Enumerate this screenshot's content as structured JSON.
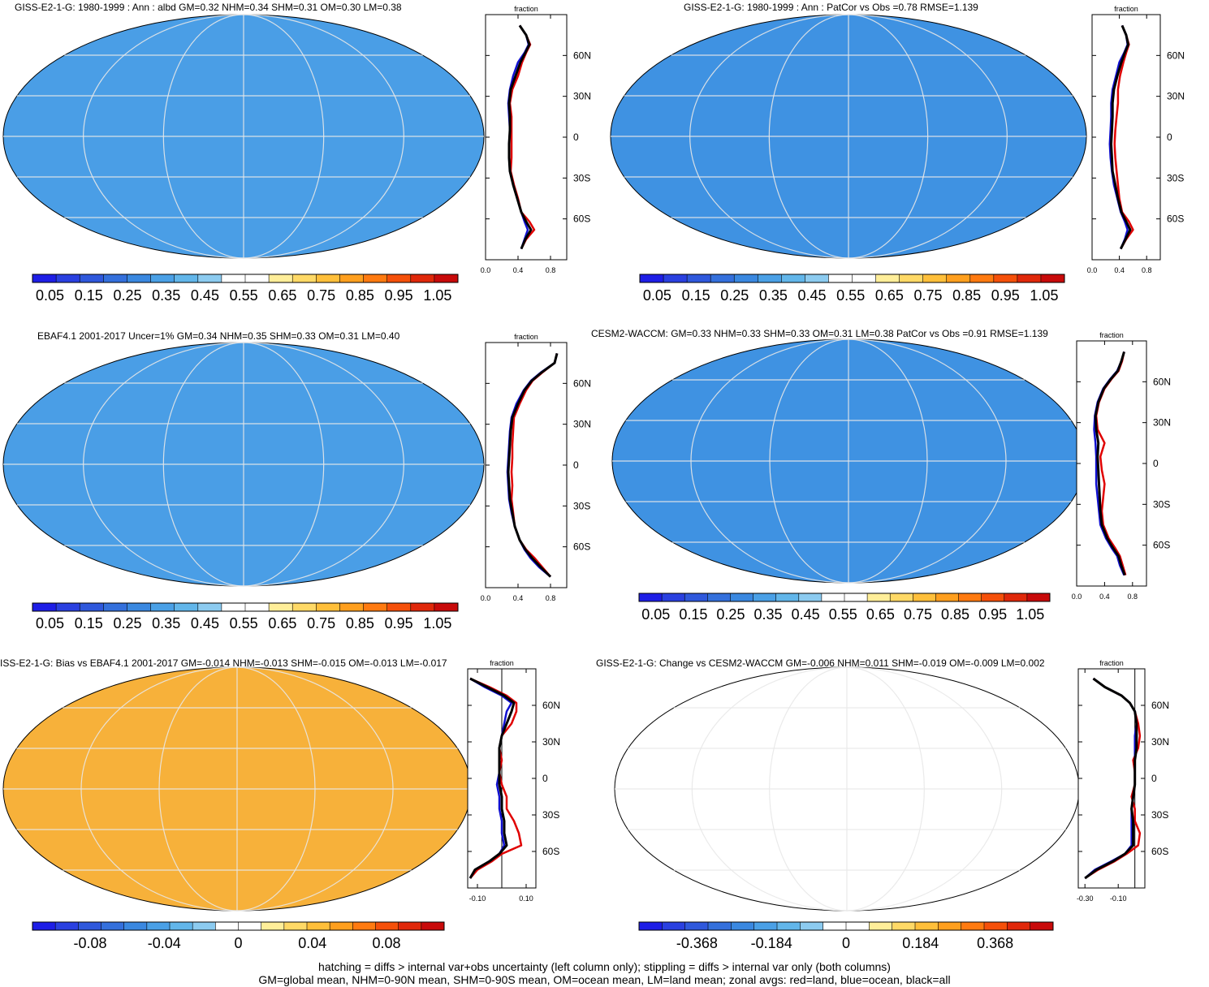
{
  "colors": {
    "scale_abs": [
      "#1e1ee6",
      "#2a40e0",
      "#2f58dc",
      "#3470dc",
      "#3a88e0",
      "#4aa0e6",
      "#62b6ea",
      "#8ccbf0",
      "#ffffff",
      "#ffffff",
      "#ffee99",
      "#ffd966",
      "#ffbf3a",
      "#ff9f1e",
      "#ff7a10",
      "#f5500a",
      "#e0280a",
      "#c80a0a"
    ],
    "scale_diff": [
      "#1e1ee6",
      "#2a40e0",
      "#2f58dc",
      "#3470dc",
      "#3a88e0",
      "#4aa0e6",
      "#62b6ea",
      "#8ccbf0",
      "#ffffff",
      "#ffffff",
      "#ffee99",
      "#ffd966",
      "#ffbf3a",
      "#ff9f1e",
      "#ff7a10",
      "#f5500a",
      "#e0280a",
      "#c80a0a"
    ],
    "land": "#e00000",
    "ocean": "#1010d0",
    "all": "#000000"
  },
  "footnote": {
    "line1": "hatching = diffs > internal var+obs uncertainty (left column only); stippling = diffs > internal var only (both columns)",
    "line2": "GM=global mean, NHM=0-90N mean, SHM=0-90S mean, OM=ocean mean, LM=land mean; zonal avgs: red=land, blue=ocean, black=all"
  },
  "panels": [
    {
      "title": "GISS-E2-1-G: 1980-1999 : Ann : albd GM=0.32 NHM=0.34 SHM=0.31 OM=0.30 LM=0.38",
      "colorbar_labels": [
        "0.05",
        "0.15",
        "0.25",
        "0.35",
        "0.45",
        "0.55",
        "0.65",
        "0.75",
        "0.85",
        "0.95",
        "1.05"
      ],
      "zonal_axis_title": "fraction",
      "lat_labels": [
        "60N",
        "30N",
        "0",
        "30S",
        "60S"
      ],
      "x_tick_labels": [
        "0.0",
        "0.4",
        "0.8"
      ]
    },
    {
      "title": "GISS-E2-1-G: 1980-1999 : Ann : PatCor vs Obs =0.78 RMSE=1.139",
      "colorbar_labels": [
        "0.05",
        "0.15",
        "0.25",
        "0.35",
        "0.45",
        "0.55",
        "0.65",
        "0.75",
        "0.85",
        "0.95",
        "1.05"
      ],
      "zonal_axis_title": "fraction",
      "lat_labels": [
        "60N",
        "30N",
        "0",
        "30S",
        "60S"
      ],
      "x_tick_labels": [
        "0.0",
        "0.4",
        "0.8"
      ]
    },
    {
      "title": "EBAF4.1 2001-2017 Uncer=1% GM=0.34 NHM=0.35 SHM=0.33 OM=0.31 LM=0.40",
      "colorbar_labels": [
        "0.05",
        "0.15",
        "0.25",
        "0.35",
        "0.45",
        "0.55",
        "0.65",
        "0.75",
        "0.85",
        "0.95",
        "1.05"
      ],
      "zonal_axis_title": "fraction",
      "lat_labels": [
        "60N",
        "30N",
        "0",
        "30S",
        "60S"
      ],
      "x_tick_labels": [
        "0.0",
        "0.4",
        "0.8"
      ]
    },
    {
      "title": "CESM2-WACCM: GM=0.33 NHM=0.33 SHM=0.33 OM=0.31 LM=0.38 PatCor vs Obs =0.91 RMSE=1.139",
      "colorbar_labels": [
        "0.05",
        "0.15",
        "0.25",
        "0.35",
        "0.45",
        "0.55",
        "0.65",
        "0.75",
        "0.85",
        "0.95",
        "1.05"
      ],
      "zonal_axis_title": "fraction",
      "lat_labels": [
        "60N",
        "30N",
        "0",
        "30S",
        "60S"
      ],
      "x_tick_labels": [
        "0.0",
        "0.4",
        "0.8"
      ]
    },
    {
      "title": "ISS-E2-1-G: Bias vs EBAF4.1 2001-2017 GM=-0.014 NHM=-0.013 SHM=-0.015 OM=-0.013 LM=-0.017",
      "colorbar_labels": [
        "-0.08",
        "-0.04",
        "0",
        "0.04",
        "0.08"
      ],
      "zonal_axis_title": "fraction",
      "lat_labels": [
        "60N",
        "30N",
        "0",
        "30S",
        "60S"
      ],
      "x_tick_labels": [
        "-0.10",
        "0.10"
      ]
    },
    {
      "title": "GISS-E2-1-G: Change vs CESM2-WACCM GM=-0.006 NHM=0.011 SHM=-0.019 OM=-0.009 LM=0.002",
      "colorbar_labels": [
        "-0.368",
        "-0.184",
        "0",
        "0.184",
        "0.368"
      ],
      "zonal_axis_title": "fraction",
      "lat_labels": [
        "60N",
        "30N",
        "0",
        "30S",
        "60S"
      ],
      "x_tick_labels": [
        "-0.30",
        "-0.10"
      ]
    }
  ],
  "chart_data": [
    {
      "type": "line",
      "title": "GISS-E2-1-G: 1980-1999 : Ann : albd GM=0.32 NHM=0.34 SHM=0.31 OM=0.30 LM=0.38",
      "xlabel": "fraction",
      "ylabel": "",
      "xlim": [
        0,
        1.0
      ],
      "ylim": [
        -90,
        90
      ],
      "grid": false,
      "x_ticks": [
        0.0,
        0.4,
        0.8
      ],
      "lat": [
        -82,
        -75,
        -68,
        -62,
        -55,
        -45,
        -35,
        -25,
        -15,
        -5,
        5,
        15,
        25,
        35,
        45,
        55,
        62,
        68,
        75,
        82
      ],
      "series": [
        {
          "values": [
            0.44,
            0.5,
            0.6,
            0.54,
            0.44,
            0.4,
            0.35,
            0.31,
            0.32,
            0.32,
            0.32,
            0.32,
            0.3,
            0.33,
            0.4,
            0.45,
            0.5,
            0.55,
            0.5,
            0.42
          ],
          "color": "#e00000"
        },
        {
          "values": [
            0.44,
            0.48,
            0.52,
            0.48,
            0.44,
            0.39,
            0.34,
            0.3,
            0.29,
            0.29,
            0.3,
            0.29,
            0.28,
            0.3,
            0.34,
            0.4,
            0.48,
            0.53,
            0.5,
            0.42
          ],
          "color": "#1010d0"
        },
        {
          "values": [
            0.44,
            0.49,
            0.56,
            0.5,
            0.44,
            0.39,
            0.34,
            0.3,
            0.29,
            0.29,
            0.3,
            0.3,
            0.29,
            0.31,
            0.37,
            0.43,
            0.49,
            0.54,
            0.5,
            0.42
          ],
          "color": "#000000"
        }
      ]
    },
    {
      "type": "line",
      "title": "GISS-E2-1-G: 1980-1999 : Ann : PatCor vs Obs =0.78 RMSE=1.139",
      "xlabel": "fraction",
      "ylabel": "",
      "xlim": [
        0,
        1.0
      ],
      "ylim": [
        -90,
        90
      ],
      "grid": false,
      "x_ticks": [
        0.0,
        0.4,
        0.8
      ],
      "lat": [
        -82,
        -75,
        -68,
        -62,
        -55,
        -45,
        -35,
        -25,
        -15,
        -5,
        5,
        15,
        25,
        35,
        45,
        55,
        62,
        68,
        75,
        82
      ],
      "series": [
        {
          "values": [
            0.42,
            0.5,
            0.6,
            0.54,
            0.44,
            0.4,
            0.38,
            0.36,
            0.34,
            0.33,
            0.34,
            0.36,
            0.38,
            0.38,
            0.41,
            0.46,
            0.5,
            0.54,
            0.5,
            0.44
          ],
          "color": "#e00000"
        },
        {
          "values": [
            0.42,
            0.48,
            0.52,
            0.48,
            0.42,
            0.37,
            0.32,
            0.29,
            0.27,
            0.26,
            0.27,
            0.28,
            0.28,
            0.3,
            0.35,
            0.4,
            0.47,
            0.52,
            0.5,
            0.44
          ],
          "color": "#1010d0"
        },
        {
          "values": [
            0.42,
            0.49,
            0.56,
            0.5,
            0.43,
            0.38,
            0.34,
            0.3,
            0.29,
            0.28,
            0.29,
            0.3,
            0.3,
            0.32,
            0.37,
            0.43,
            0.48,
            0.53,
            0.5,
            0.44
          ],
          "color": "#000000"
        }
      ]
    },
    {
      "type": "line",
      "title": "EBAF4.1 2001-2017 Uncer=1% GM=0.34 NHM=0.35 SHM=0.33 OM=0.31 LM=0.40",
      "xlabel": "fraction",
      "ylabel": "",
      "xlim": [
        0,
        1.0
      ],
      "ylim": [
        -90,
        90
      ],
      "grid": false,
      "x_ticks": [
        0.0,
        0.4,
        0.8
      ],
      "lat": [
        -82,
        -75,
        -68,
        -62,
        -55,
        -45,
        -35,
        -25,
        -15,
        -5,
        5,
        15,
        25,
        35,
        45,
        55,
        62,
        68,
        75,
        82
      ],
      "series": [
        {
          "values": [
            0.8,
            0.7,
            0.6,
            0.5,
            0.42,
            0.36,
            0.34,
            0.32,
            0.33,
            0.32,
            0.33,
            0.33,
            0.34,
            0.35,
            0.42,
            0.5,
            0.58,
            0.7,
            0.85,
            0.88
          ],
          "color": "#e00000"
        },
        {
          "values": [
            0.8,
            0.66,
            0.55,
            0.48,
            0.42,
            0.36,
            0.32,
            0.29,
            0.28,
            0.27,
            0.28,
            0.29,
            0.3,
            0.32,
            0.38,
            0.47,
            0.56,
            0.68,
            0.85,
            0.88
          ],
          "color": "#1010d0"
        },
        {
          "values": [
            0.8,
            0.68,
            0.57,
            0.49,
            0.42,
            0.36,
            0.33,
            0.3,
            0.29,
            0.28,
            0.29,
            0.3,
            0.31,
            0.33,
            0.4,
            0.48,
            0.57,
            0.69,
            0.85,
            0.88
          ],
          "color": "#000000"
        }
      ]
    },
    {
      "type": "line",
      "title": "CESM2-WACCM: GM=0.33 NHM=0.33 SHM=0.33 OM=0.31 LM=0.38 PatCor vs Obs =0.91 RMSE=1.139",
      "xlabel": "fraction",
      "ylabel": "",
      "xlim": [
        0,
        1.0
      ],
      "ylim": [
        -90,
        90
      ],
      "grid": false,
      "x_ticks": [
        0.0,
        0.4,
        0.8
      ],
      "lat": [
        -82,
        -75,
        -68,
        -62,
        -55,
        -45,
        -35,
        -25,
        -15,
        -5,
        5,
        15,
        25,
        35,
        45,
        55,
        62,
        68,
        75,
        82
      ],
      "series": [
        {
          "values": [
            0.7,
            0.66,
            0.62,
            0.55,
            0.46,
            0.38,
            0.36,
            0.38,
            0.4,
            0.36,
            0.34,
            0.4,
            0.3,
            0.28,
            0.32,
            0.4,
            0.5,
            0.6,
            0.65,
            0.68
          ],
          "color": "#e00000"
        },
        {
          "values": [
            0.68,
            0.62,
            0.58,
            0.5,
            0.42,
            0.34,
            0.32,
            0.3,
            0.28,
            0.28,
            0.28,
            0.27,
            0.25,
            0.26,
            0.3,
            0.38,
            0.48,
            0.58,
            0.64,
            0.68
          ],
          "color": "#1010d0"
        },
        {
          "values": [
            0.69,
            0.64,
            0.6,
            0.52,
            0.44,
            0.36,
            0.34,
            0.33,
            0.32,
            0.31,
            0.3,
            0.31,
            0.28,
            0.27,
            0.31,
            0.39,
            0.49,
            0.59,
            0.64,
            0.68
          ],
          "color": "#000000"
        }
      ]
    },
    {
      "type": "line",
      "title": "ISS-E2-1-G: Bias vs EBAF4.1 2001-2017 GM=-0.014 NHM=-0.013 SHM=-0.015 OM=-0.013 LM=-0.017",
      "xlabel": "fraction",
      "ylabel": "",
      "xlim": [
        -0.14,
        0.14
      ],
      "ylim": [
        -90,
        90
      ],
      "grid": false,
      "x_ticks": [
        -0.1,
        0.1
      ],
      "lat": [
        -82,
        -75,
        -68,
        -62,
        -55,
        -45,
        -35,
        -25,
        -15,
        -5,
        5,
        15,
        25,
        35,
        45,
        55,
        62,
        68,
        75,
        82
      ],
      "series": [
        {
          "values": [
            -0.13,
            -0.1,
            -0.04,
            0.0,
            0.08,
            0.07,
            0.05,
            0.02,
            0.02,
            0.0,
            -0.01,
            0.0,
            -0.01,
            0.0,
            0.04,
            0.06,
            0.06,
            0.02,
            -0.05,
            -0.13
          ],
          "color": "#e00000"
        },
        {
          "values": [
            -0.13,
            -0.11,
            -0.05,
            -0.01,
            0.01,
            0.0,
            0.0,
            -0.01,
            -0.01,
            -0.02,
            -0.01,
            -0.01,
            -0.01,
            0.0,
            0.01,
            0.02,
            0.04,
            0.0,
            -0.07,
            -0.13
          ],
          "color": "#1010d0"
        },
        {
          "values": [
            -0.13,
            -0.11,
            -0.05,
            -0.01,
            0.02,
            0.01,
            0.01,
            0.0,
            0.0,
            -0.01,
            -0.01,
            -0.01,
            -0.01,
            0.0,
            0.02,
            0.04,
            0.05,
            0.01,
            -0.06,
            -0.13
          ],
          "color": "#000000"
        }
      ]
    },
    {
      "type": "line",
      "title": "GISS-E2-1-G: Change vs CESM2-WACCM GM=-0.006 NHM=0.011 SHM=-0.019 OM=-0.009 LM=0.002",
      "xlabel": "fraction",
      "ylabel": "",
      "xlim": [
        -0.34,
        0.06
      ],
      "ylim": [
        -90,
        90
      ],
      "grid": false,
      "x_ticks": [
        -0.3,
        -0.1
      ],
      "lat": [
        -82,
        -75,
        -68,
        -62,
        -55,
        -45,
        -35,
        -25,
        -15,
        -5,
        5,
        15,
        25,
        35,
        45,
        55,
        62,
        68,
        75,
        82
      ],
      "series": [
        {
          "values": [
            -0.3,
            -0.22,
            -0.12,
            -0.05,
            0.02,
            0.03,
            0.0,
            0.0,
            -0.02,
            0.0,
            0.0,
            -0.01,
            0.02,
            0.03,
            0.02,
            0.0,
            -0.03,
            -0.08,
            -0.18,
            -0.25
          ],
          "color": "#e00000"
        },
        {
          "values": [
            -0.3,
            -0.24,
            -0.14,
            -0.06,
            -0.02,
            -0.02,
            -0.02,
            -0.02,
            -0.01,
            0.0,
            0.0,
            0.0,
            0.0,
            0.0,
            0.01,
            0.0,
            -0.03,
            -0.08,
            -0.18,
            -0.25
          ],
          "color": "#1010d0"
        },
        {
          "values": [
            -0.3,
            -0.23,
            -0.13,
            -0.06,
            -0.01,
            -0.01,
            -0.01,
            -0.02,
            -0.01,
            0.0,
            0.0,
            0.0,
            0.01,
            0.01,
            0.01,
            0.0,
            -0.03,
            -0.08,
            -0.18,
            -0.25
          ],
          "color": "#000000"
        }
      ]
    }
  ]
}
